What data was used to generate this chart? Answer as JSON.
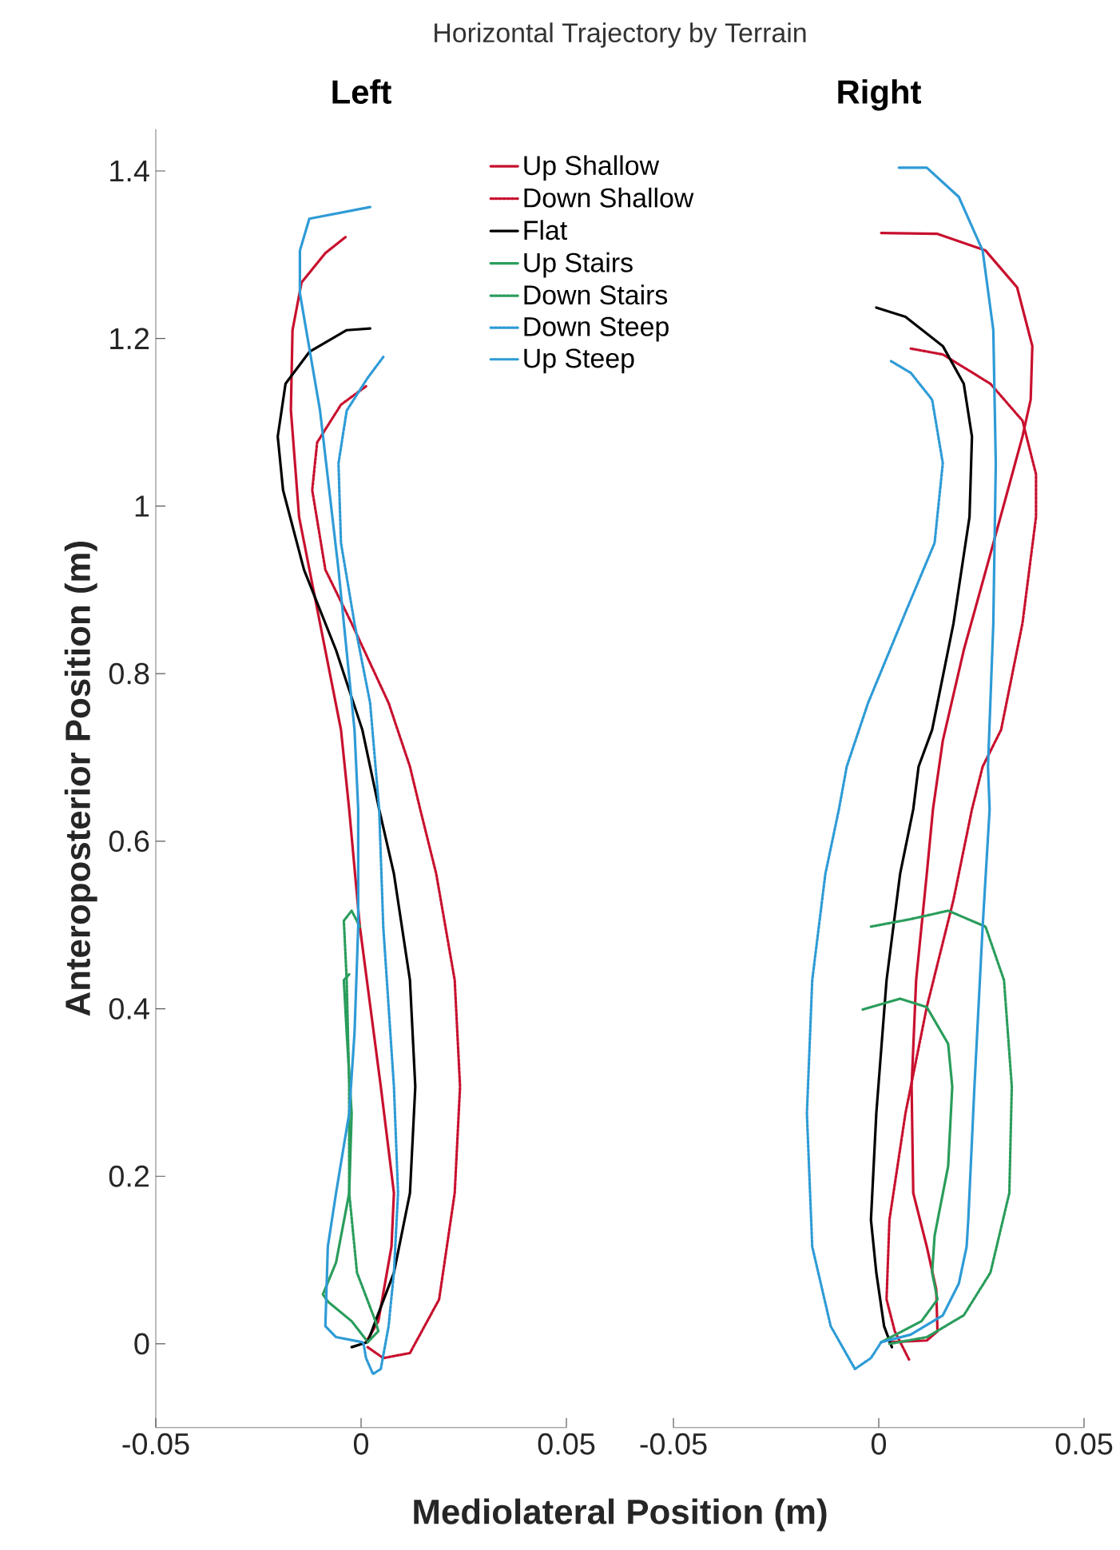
{
  "chart_data": [
    {
      "type": "line",
      "title": "Left",
      "annotations": [
        "Horizontal Trajectory by Terrain"
      ],
      "xlabel": "Mediolateral Position (m)",
      "ylabel": "Anteroposterior Position (m)",
      "xlim": [
        -0.05,
        0.05
      ],
      "xticks": [
        -0.05,
        0,
        0.05
      ],
      "ylim": [
        -0.1,
        1.45
      ],
      "yticks": [
        0,
        0.2,
        0.4,
        0.6,
        0.8,
        1,
        1.2,
        1.4
      ],
      "legend": "top right",
      "grid": false,
      "marker": "none",
      "series": [
        {
          "name": "Up Shallow",
          "color": "#c8102e",
          "line_style": "solid",
          "x": [
            -0.0038,
            -0.0087,
            -0.0145,
            -0.0167,
            -0.0171,
            -0.0151,
            -0.01,
            -0.0049,
            -0.0029,
            -0.0003,
            0.0048,
            0.008,
            0.0074,
            0.0042,
            0.0012
          ],
          "values": [
            1.321,
            1.302,
            1.267,
            1.21,
            1.115,
            0.987,
            0.86,
            0.733,
            0.638,
            0.498,
            0.307,
            0.18,
            0.116,
            0.027,
            0.002
          ]
        },
        {
          "name": "Down Shallow",
          "color": "#c8102e",
          "line_style": "dotted",
          "x": [
            0.0012,
            -0.0049,
            -0.0107,
            -0.0119,
            -0.0087,
            -0.0023,
            0.0067,
            0.0119,
            0.0144,
            0.0183,
            0.0228,
            0.0241,
            0.0228,
            0.019,
            0.0119,
            0.0054,
            0.0016
          ],
          "values": [
            1.143,
            1.121,
            1.076,
            1.019,
            0.924,
            0.86,
            0.765,
            0.689,
            0.638,
            0.561,
            0.434,
            0.307,
            0.18,
            0.053,
            -0.011,
            -0.017,
            -0.004
          ]
        },
        {
          "name": "Flat",
          "color": "#000000",
          "line_style": "solid",
          "x": [
            0.0022,
            -0.0035,
            -0.0126,
            -0.0184,
            -0.0203,
            -0.019,
            -0.0139,
            -0.0061,
            0.0003,
            0.0044,
            0.008,
            0.0119,
            0.0132,
            0.0119,
            0.008,
            0.0035,
            0.0016,
            -0.0023
          ],
          "values": [
            1.212,
            1.21,
            1.184,
            1.146,
            1.083,
            1.019,
            0.924,
            0.828,
            0.733,
            0.638,
            0.561,
            0.434,
            0.307,
            0.18,
            0.085,
            0.027,
            0.002,
            -0.004
          ]
        },
        {
          "name": "Up Stairs",
          "color": "#2a9d5c",
          "line_style": "solid",
          "x": [
            -0.0029,
            -0.0042,
            -0.0035,
            -0.0023,
            -0.0029,
            -0.0061,
            -0.0093,
            -0.008,
            -0.0023,
            0.0012
          ],
          "values": [
            0.441,
            0.434,
            0.371,
            0.275,
            0.18,
            0.097,
            0.059,
            0.05,
            0.027,
            0.005
          ]
        },
        {
          "name": "Down Stairs",
          "color": "#2a9d5c",
          "line_style": "dotted",
          "x": [
            -0.0003,
            -0.0023,
            -0.0042,
            -0.0035,
            -0.0029,
            -0.0029,
            -0.001,
            0.0035,
            0.0042,
            0.0016
          ],
          "values": [
            0.498,
            0.517,
            0.505,
            0.434,
            0.307,
            0.18,
            0.085,
            0.027,
            0.015,
            0.002
          ]
        },
        {
          "name": "Down Steep",
          "color": "#2e9bd6",
          "line_style": "dotted",
          "x": [
            0.0054,
            0.0016,
            -0.0035,
            -0.0055,
            -0.0049,
            -0.0016,
            0.0022,
            0.0044,
            0.0054,
            0.008,
            0.009,
            0.008,
            0.0067,
            0.0048,
            0.0029,
            0.0012,
            0.0006
          ],
          "values": [
            1.178,
            1.153,
            1.114,
            1.051,
            0.956,
            0.86,
            0.765,
            0.638,
            0.498,
            0.307,
            0.18,
            0.085,
            0.021,
            -0.03,
            -0.036,
            -0.017,
            0
          ]
        },
        {
          "name": "Up Steep",
          "color": "#2e9bd6",
          "line_style": "solid",
          "x": [
            0.0022,
            -0.0126,
            -0.0149,
            -0.0149,
            -0.01,
            -0.0055,
            -0.0016,
            -0.0007,
            -0.0007,
            -0.0016,
            -0.0029,
            -0.0061,
            -0.0081,
            -0.0087,
            -0.0061,
            0.0003
          ],
          "values": [
            1.357,
            1.343,
            1.305,
            1.254,
            1.114,
            0.924,
            0.733,
            0.638,
            0.498,
            0.371,
            0.275,
            0.18,
            0.116,
            0.021,
            0.008,
            0.002
          ]
        }
      ]
    },
    {
      "type": "line",
      "title": "Right",
      "xlim": [
        -0.05,
        0.05
      ],
      "xticks": [
        -0.05,
        0,
        0.05
      ],
      "yticks": [
        0,
        0.2,
        0.4,
        0.6,
        0.8,
        1,
        1.2,
        1.4
      ],
      "tick_labels": "x",
      "grid": false,
      "marker": "none",
      "series": [
        {
          "color": "#c8102e",
          "line_style": "solid",
          "x": [
            0.0006,
            0.0143,
            0.026,
            0.0337,
            0.0374,
            0.037,
            0.035,
            0.0272,
            0.0207,
            0.0156,
            0.0132,
            0.0117,
            0.0091,
            0.008,
            0.0084,
            0.0117,
            0.014,
            0.0143,
            0.0117,
            0.0026
          ],
          "values": [
            1.326,
            1.325,
            1.305,
            1.261,
            1.191,
            1.127,
            1.083,
            0.943,
            0.828,
            0.72,
            0.638,
            0.561,
            0.434,
            0.307,
            0.18,
            0.116,
            0.065,
            0.015,
            0.004,
            0.002
          ]
        },
        {
          "color": "#c8102e",
          "line_style": "dotted",
          "x": [
            0.0078,
            0.0156,
            0.0272,
            0.035,
            0.0383,
            0.0383,
            0.035,
            0.0298,
            0.0253,
            0.0227,
            0.0182,
            0.0117,
            0.0065,
            0.0026,
            0.0019,
            0.0039,
            0.0075
          ],
          "values": [
            1.188,
            1.181,
            1.146,
            1.102,
            1.038,
            0.987,
            0.86,
            0.733,
            0.689,
            0.638,
            0.53,
            0.402,
            0.275,
            0.148,
            0.053,
            0.015,
            -0.02
          ]
        },
        {
          "color": "#000000",
          "line_style": "solid",
          "x": [
            -0.0006,
            0.0065,
            0.0156,
            0.0207,
            0.0227,
            0.0221,
            0.0182,
            0.013,
            0.0097,
            0.0084,
            0.0052,
            0.0019,
            -0.0006,
            -0.0019,
            -0.0006,
            0.0013,
            0.0032
          ],
          "values": [
            1.237,
            1.226,
            1.191,
            1.146,
            1.083,
            0.987,
            0.86,
            0.733,
            0.689,
            0.638,
            0.561,
            0.434,
            0.275,
            0.148,
            0.085,
            0.021,
            -0.004
          ]
        },
        {
          "color": "#2a9d5c",
          "line_style": "solid",
          "x": [
            -0.0039,
            0.0052,
            0.0117,
            0.0169,
            0.0179,
            0.0169,
            0.0136,
            0.013,
            0.0143,
            0.0104,
            0.0006
          ],
          "values": [
            0.399,
            0.412,
            0.402,
            0.358,
            0.307,
            0.212,
            0.129,
            0.085,
            0.053,
            0.027,
            0.002
          ]
        },
        {
          "color": "#2a9d5c",
          "line_style": "dotted",
          "x": [
            -0.0019,
            0.0078,
            0.0169,
            0.026,
            0.0305,
            0.0324,
            0.0318,
            0.0272,
            0.0207,
            0.0117,
            0.0026
          ],
          "values": [
            0.498,
            0.507,
            0.517,
            0.498,
            0.434,
            0.307,
            0.18,
            0.085,
            0.034,
            0.008,
            0
          ]
        },
        {
          "color": "#2e9bd6",
          "line_style": "dotted",
          "x": [
            0.003,
            0.0078,
            0.013,
            0.0156,
            0.0136,
            0.0065,
            -0.0026,
            -0.0078,
            -0.0097,
            -0.013,
            -0.0162,
            -0.0175,
            -0.0162,
            -0.0117,
            -0.0058,
            -0.0019,
            0.0006
          ],
          "values": [
            1.173,
            1.159,
            1.127,
            1.051,
            0.956,
            0.873,
            0.765,
            0.689,
            0.638,
            0.561,
            0.434,
            0.275,
            0.116,
            0.021,
            -0.03,
            -0.017,
            0.002
          ]
        },
        {
          "color": "#2e9bd6",
          "line_style": "solid",
          "x": [
            0.0049,
            0.0117,
            0.0195,
            0.0253,
            0.0279,
            0.0285,
            0.0279,
            0.0266,
            0.027,
            0.0253,
            0.0233,
            0.0218,
            0.0214,
            0.0195,
            0.0156,
            0.0078,
            0.0006
          ],
          "values": [
            1.404,
            1.404,
            1.369,
            1.305,
            1.21,
            1.051,
            0.86,
            0.689,
            0.638,
            0.498,
            0.307,
            0.148,
            0.116,
            0.072,
            0.034,
            0.011,
            0.002
          ]
        }
      ]
    }
  ]
}
